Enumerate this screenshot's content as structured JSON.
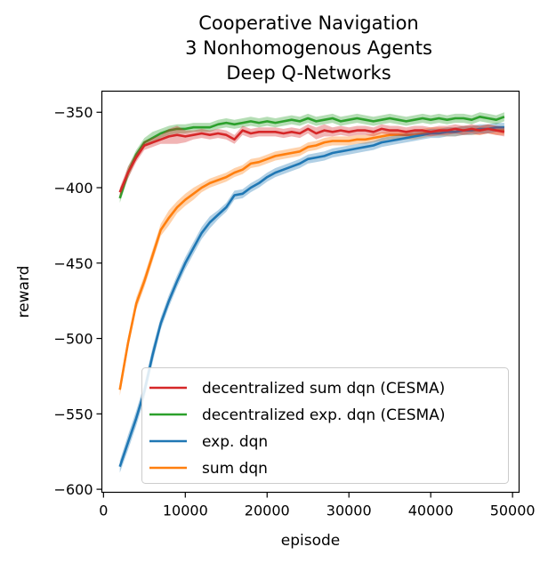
{
  "chart_data": {
    "type": "line",
    "title_lines": [
      "Cooperative Navigation",
      "3 Nonhomogenous Agents",
      "Deep Q-Networks"
    ],
    "xlabel": "episode",
    "ylabel": "reward",
    "xlim": [
      -200,
      50800
    ],
    "ylim": [
      -602,
      -336
    ],
    "xticks": [
      0,
      10000,
      20000,
      30000,
      40000,
      50000
    ],
    "xtick_labels": [
      "0",
      "10000",
      "20000",
      "30000",
      "40000",
      "50000"
    ],
    "yticks": [
      -350,
      -400,
      -450,
      -500,
      -550,
      -600
    ],
    "ytick_labels": [
      "−350",
      "−400",
      "−450",
      "−500",
      "−550",
      "−600"
    ],
    "grid": false,
    "legend_position": "lower-right",
    "x": [
      2000,
      3000,
      4000,
      5000,
      6000,
      7000,
      8000,
      9000,
      10000,
      11000,
      12000,
      13000,
      14000,
      15000,
      16000,
      17000,
      18000,
      19000,
      20000,
      21000,
      22000,
      23000,
      24000,
      25000,
      26000,
      27000,
      28000,
      29000,
      30000,
      31000,
      32000,
      33000,
      34000,
      35000,
      36000,
      37000,
      38000,
      39000,
      40000,
      41000,
      42000,
      43000,
      44000,
      45000,
      46000,
      47000,
      48000,
      49000
    ],
    "series": [
      {
        "name": "decentralized sum dqn (CESMA)",
        "color": "#d62728",
        "values": [
          -403,
          -390,
          -380,
          -372,
          -370,
          -368,
          -366,
          -365,
          -366,
          -365,
          -364,
          -365,
          -364,
          -365,
          -368,
          -362,
          -364,
          -363,
          -363,
          -363,
          -364,
          -363,
          -364,
          -361,
          -364,
          -362,
          -363,
          -362,
          -363,
          -362,
          -362,
          -363,
          -361,
          -362,
          -362,
          -363,
          -362,
          -362,
          -363,
          -362,
          -362,
          -361,
          -362,
          -361,
          -362,
          -361,
          -362,
          -363
        ],
        "band": [
          3,
          4,
          3,
          3,
          3,
          3,
          5,
          6,
          4,
          3,
          3,
          3,
          3,
          3,
          3,
          3,
          3,
          3,
          3,
          3,
          3,
          3,
          3,
          3,
          4,
          4,
          3,
          3,
          3,
          3,
          3,
          3,
          3,
          3,
          3,
          3,
          3,
          3,
          3,
          3,
          3,
          3,
          3,
          3,
          3,
          3,
          3,
          3
        ]
      },
      {
        "name": "decentralized exp. dqn (CESMA)",
        "color": "#2ca02c",
        "values": [
          -407,
          -390,
          -378,
          -370,
          -367,
          -364,
          -362,
          -361,
          -361,
          -360,
          -360,
          -360,
          -358,
          -357,
          -358,
          -357,
          -356,
          -357,
          -356,
          -357,
          -356,
          -355,
          -356,
          -354,
          -356,
          -355,
          -354,
          -356,
          -355,
          -354,
          -355,
          -356,
          -355,
          -354,
          -355,
          -356,
          -355,
          -354,
          -355,
          -354,
          -355,
          -354,
          -354,
          -355,
          -353,
          -354,
          -355,
          -353
        ],
        "band": [
          3,
          4,
          3,
          3,
          4,
          3,
          3,
          3,
          3,
          3,
          3,
          3,
          3,
          3,
          3,
          3,
          3,
          3,
          3,
          3,
          3,
          3,
          3,
          3,
          3,
          3,
          3,
          3,
          3,
          3,
          3,
          3,
          3,
          3,
          3,
          3,
          3,
          3,
          3,
          3,
          3,
          3,
          3,
          3,
          3,
          3,
          3,
          3
        ]
      },
      {
        "name": "exp. dqn",
        "color": "#1f77b4",
        "values": [
          -585,
          -569,
          -553,
          -535,
          -511,
          -490,
          -475,
          -462,
          -450,
          -440,
          -430,
          -423,
          -418,
          -413,
          -405,
          -404,
          -400,
          -397,
          -393,
          -390,
          -388,
          -386,
          -384,
          -381,
          -380,
          -379,
          -377,
          -376,
          -375,
          -374,
          -373,
          -372,
          -370,
          -369,
          -368,
          -367,
          -366,
          -365,
          -364,
          -364,
          -363,
          -363,
          -362,
          -362,
          -361,
          -361,
          -360,
          -360
        ],
        "band": [
          4,
          5,
          5,
          5,
          5,
          4,
          4,
          4,
          4,
          4,
          4,
          4,
          3,
          3,
          3,
          3,
          3,
          3,
          3,
          3,
          3,
          3,
          3,
          3,
          3,
          3,
          3,
          3,
          3,
          3,
          3,
          3,
          3,
          3,
          3,
          3,
          3,
          3,
          3,
          3,
          3,
          3,
          3,
          3,
          3,
          3,
          3,
          3
        ]
      },
      {
        "name": "sum dqn",
        "color": "#ff7f0e",
        "values": [
          -534,
          -503,
          -477,
          -462,
          -445,
          -428,
          -420,
          -413,
          -408,
          -404,
          -400,
          -397,
          -395,
          -393,
          -390,
          -388,
          -384,
          -383,
          -381,
          -379,
          -378,
          -377,
          -376,
          -373,
          -372,
          -370,
          -369,
          -369,
          -369,
          -368,
          -368,
          -367,
          -366,
          -365,
          -365,
          -365,
          -365,
          -364,
          -363,
          -363,
          -363,
          -363,
          -362,
          -362,
          -362,
          -361,
          -362,
          -362
        ],
        "band": [
          4,
          4,
          4,
          4,
          4,
          4,
          5,
          4,
          4,
          4,
          3,
          3,
          3,
          3,
          3,
          3,
          3,
          3,
          3,
          3,
          3,
          3,
          3,
          3,
          3,
          3,
          3,
          3,
          3,
          3,
          3,
          3,
          3,
          3,
          3,
          3,
          3,
          3,
          3,
          3,
          3,
          3,
          3,
          3,
          3,
          3,
          3,
          3
        ]
      }
    ]
  }
}
